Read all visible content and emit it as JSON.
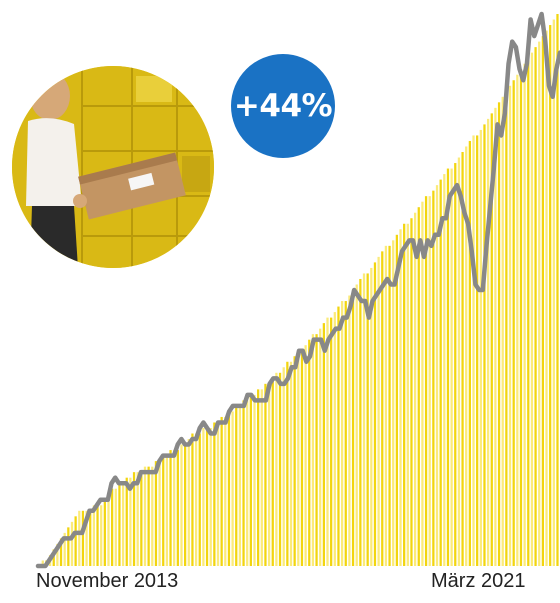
{
  "chart_data": {
    "type": "bar",
    "title": "",
    "xlabel": "",
    "ylabel": "",
    "x_start_label": "November 2013",
    "x_end_label": "März 2021",
    "ylim": [
      0,
      100
    ],
    "grid": false,
    "annotation": "+44%",
    "series": [
      {
        "kind": "bar",
        "values": [
          0,
          1,
          1,
          2,
          3,
          4,
          5,
          6,
          7,
          8,
          9,
          10,
          10,
          10,
          10,
          11,
          11,
          11,
          12,
          13,
          14,
          14,
          15,
          15,
          16,
          16,
          17,
          17,
          17,
          18,
          18,
          18,
          19,
          19,
          20,
          20,
          21,
          21,
          21,
          22,
          22,
          23,
          24,
          24,
          24,
          25,
          25,
          25,
          26,
          26,
          27,
          27,
          28,
          28,
          29,
          29,
          30,
          30,
          31,
          31,
          32,
          32,
          33,
          33,
          34,
          35,
          35,
          36,
          37,
          37,
          38,
          39,
          39,
          40,
          41,
          42,
          42,
          43,
          44,
          45,
          45,
          46,
          47,
          48,
          48,
          49,
          50,
          51,
          52,
          53,
          53,
          54,
          55,
          56,
          57,
          58,
          58,
          59,
          60,
          61,
          62,
          62,
          63,
          64,
          65,
          66,
          67,
          67,
          68,
          69,
          70,
          71,
          72,
          72,
          73,
          74,
          75,
          76,
          77,
          78,
          78,
          79,
          80,
          81,
          82,
          83,
          84,
          85,
          86,
          87,
          88,
          89,
          90,
          91,
          92,
          93,
          94,
          95,
          96,
          97,
          98,
          99,
          100
        ]
      },
      {
        "kind": "line",
        "values": [
          0,
          0,
          0,
          1,
          2,
          3,
          4,
          5,
          5,
          5,
          6,
          6,
          6,
          8,
          10,
          10,
          11,
          12,
          12,
          12,
          15,
          16,
          15,
          15,
          15,
          14,
          15,
          15,
          17,
          17,
          17,
          17,
          17,
          19,
          20,
          20,
          20,
          20,
          22,
          23,
          22,
          22,
          23,
          23,
          25,
          26,
          25,
          24,
          24,
          26,
          26,
          26,
          28,
          29,
          29,
          29,
          29,
          31,
          31,
          30,
          30,
          30,
          30,
          33,
          34,
          34,
          33,
          33,
          34,
          36,
          36,
          39,
          39,
          37,
          38,
          41,
          41,
          41,
          39,
          41,
          42,
          43,
          43,
          45,
          45,
          47,
          50,
          49,
          48,
          48,
          45,
          48,
          49,
          50,
          51,
          52,
          51,
          51,
          54,
          57,
          58,
          59,
          59,
          56,
          59,
          56,
          59,
          58,
          60,
          60,
          63,
          63,
          67,
          68,
          69,
          67,
          64,
          62,
          57,
          51,
          50,
          50,
          58,
          65,
          72,
          80,
          78,
          82,
          91,
          95,
          94,
          90,
          88,
          91,
          99,
          96,
          98,
          100,
          95,
          87,
          85,
          90,
          93
        ]
      }
    ]
  },
  "colors": {
    "bar": "#f2d50f",
    "bar_light": "#fbeb7a",
    "line": "#888888",
    "badge": "#1a72c4"
  },
  "photo_icon": "parcel-locker-photo"
}
